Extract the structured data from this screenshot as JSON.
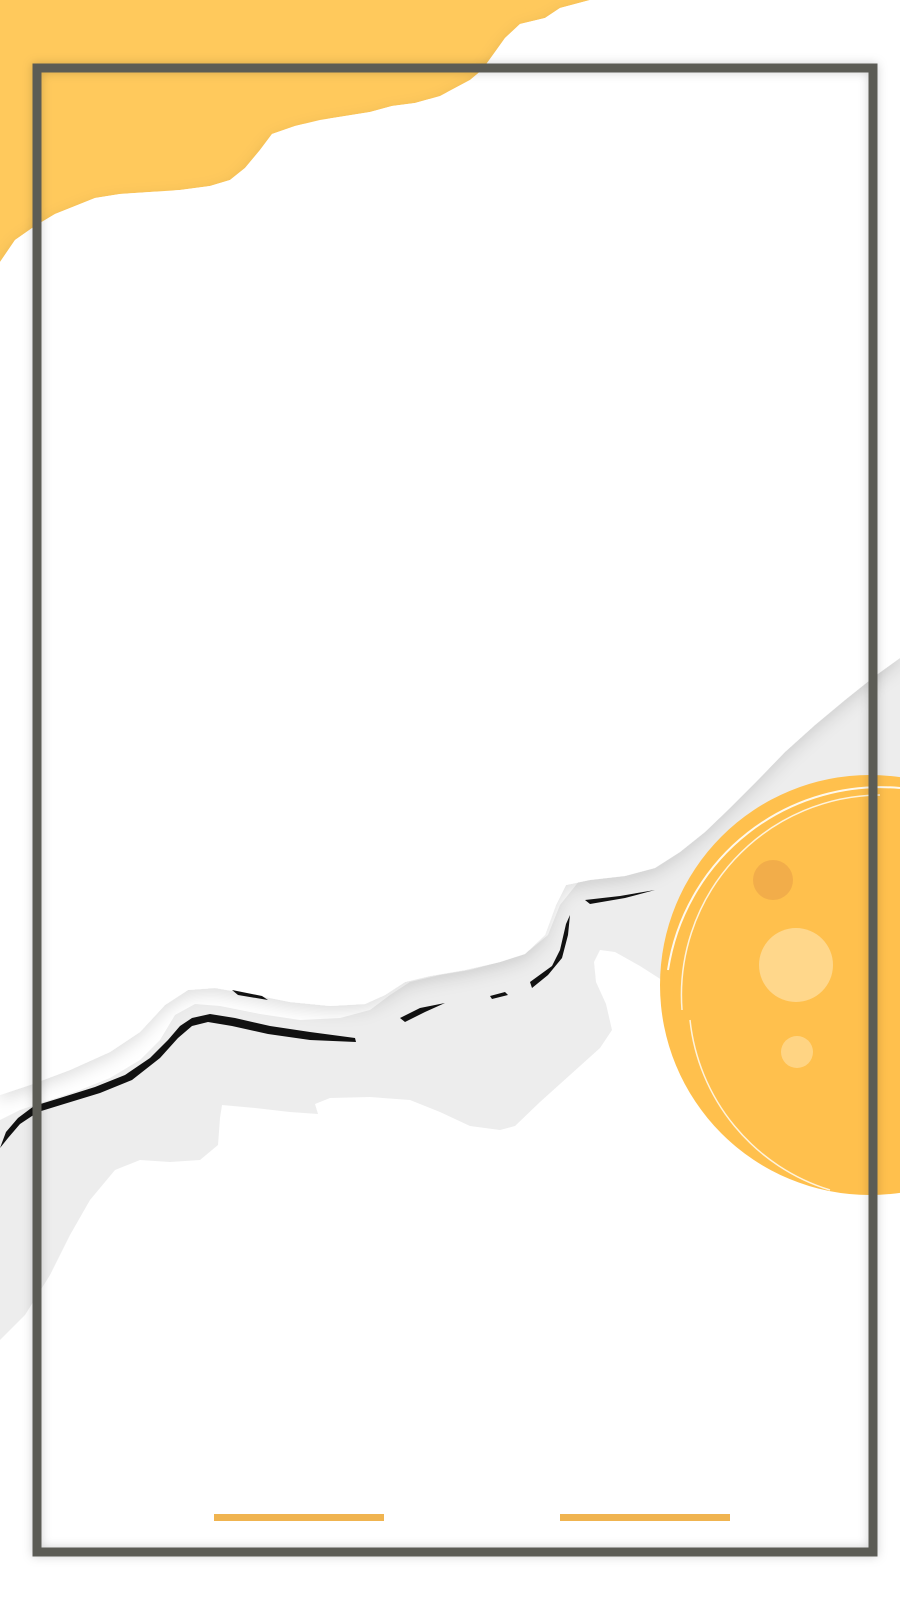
{
  "colors": {
    "background": "#ffffff",
    "frame": "#5b5b55",
    "yellow_brush": "#ffc95c",
    "yellow_circle": "#ffc04d",
    "circle_dot_dark": "#f0a94a",
    "circle_dot_light": "#ffdb96",
    "gray_wave": "#ededed",
    "ink_stroke": "#111111",
    "accent_line": "#f0b450"
  },
  "icons": {
    "frame": "rectangle-frame-icon",
    "brush_top": "yellow-brush-stroke-icon",
    "wave": "gray-wave-icon",
    "sun": "yellow-sun-circle-icon",
    "line_left": "left-accent-line-icon",
    "line_right": "right-accent-line-icon"
  }
}
